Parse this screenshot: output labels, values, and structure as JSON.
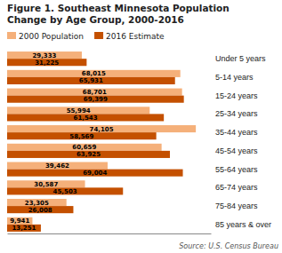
{
  "chart_data": {
    "type": "bar",
    "orientation": "horizontal",
    "title": "Figure 1. Southeast Minnesota Population",
    "subtitle": "Change by Age Group, 2000-2016",
    "categories": [
      "Under 5 years",
      "5-14 years",
      "15-24 years",
      "25-34 years",
      "35-44 years",
      "45-54 years",
      "55-64 years",
      "65-74 years",
      "75-84 years",
      "85 years & over"
    ],
    "series": [
      {
        "name": "2000 Population",
        "color": "#f5b07a",
        "values": [
          29333,
          68015,
          68701,
          55994,
          74105,
          60659,
          39462,
          30587,
          23305,
          9941
        ],
        "value_labels": [
          "29,333",
          "68,015",
          "68,701",
          "55,994",
          "74,105",
          "60,659",
          "39,462",
          "30,587",
          "23,305",
          "9,941"
        ]
      },
      {
        "name": "2016 Estimate",
        "color": "#c45000",
        "values": [
          31225,
          65931,
          69399,
          61543,
          58569,
          63925,
          69004,
          45503,
          26008,
          13251
        ],
        "value_labels": [
          "31,225",
          "65,931",
          "69,399",
          "61,543",
          "58,569",
          "63,925",
          "69,004",
          "45,503",
          "26,008",
          "13,251"
        ]
      }
    ],
    "xlim": [
      0,
      80000
    ],
    "data_labels": true,
    "tick_labels": "y",
    "legend": "upper left",
    "grid": false,
    "annotations": [
      "Source: U.S. Census Bureau"
    ]
  }
}
